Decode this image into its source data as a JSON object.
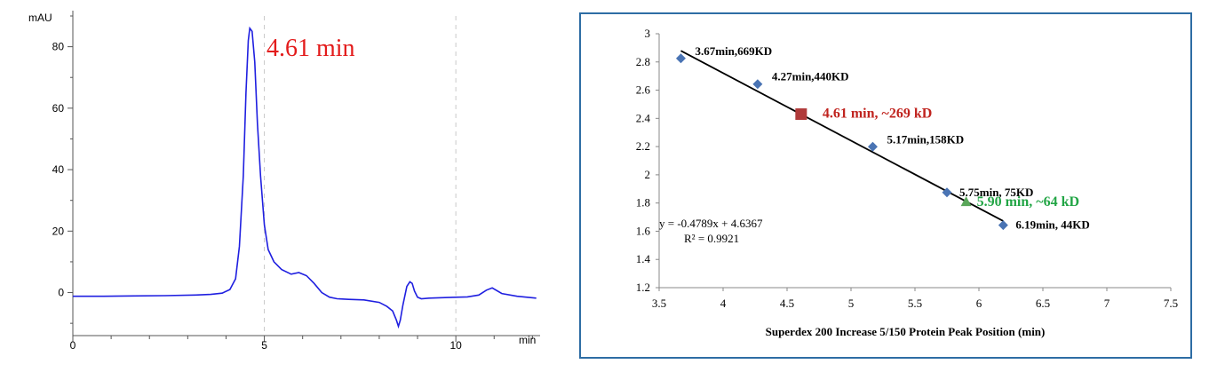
{
  "chart_data": [
    {
      "type": "line",
      "ylabel": "mAU",
      "xlabel": "min",
      "xlim": [
        0,
        12.2
      ],
      "ylim": [
        -14,
        90
      ],
      "yticks": [
        0,
        20,
        40,
        60,
        80
      ],
      "xticks": [
        0,
        5,
        10
      ],
      "annotation": "4.61 min",
      "colors": {
        "trace": "#1f1fe0",
        "annotation": "#e31b1b"
      },
      "series": [
        {
          "x": [
            0,
            0.8,
            1.6,
            2.4,
            3.2,
            3.6,
            3.9,
            4.1,
            4.25,
            4.35,
            4.45,
            4.52,
            4.58,
            4.62,
            4.68,
            4.75,
            4.82,
            4.9,
            5.0,
            5.1,
            5.25,
            5.45,
            5.7,
            5.9,
            6.1,
            6.3,
            6.5,
            6.7,
            6.9,
            7.2,
            7.6,
            8.0,
            8.2,
            8.35,
            8.45,
            8.5,
            8.55,
            8.62,
            8.72,
            8.8,
            8.86,
            8.92,
            9.0,
            9.1,
            9.3,
            9.8,
            10.3,
            10.6,
            10.8,
            10.95,
            11.2,
            11.6,
            12.1
          ],
          "y": [
            -1.2,
            -1.2,
            -1.1,
            -1.0,
            -0.8,
            -0.6,
            -0.2,
            1.0,
            4.5,
            15,
            38,
            65,
            82,
            86,
            85,
            75,
            55,
            38,
            22,
            14,
            10,
            7.5,
            6,
            6.5,
            5.5,
            3,
            0,
            -1.5,
            -2,
            -2.2,
            -2.4,
            -3.2,
            -4.5,
            -6,
            -9,
            -11,
            -9,
            -4,
            2,
            3.5,
            3,
            0.5,
            -1.5,
            -2,
            -1.8,
            -1.6,
            -1.4,
            -0.8,
            0.8,
            1.5,
            -0.3,
            -1.2,
            -1.8
          ]
        }
      ]
    },
    {
      "type": "scatter",
      "xlabel": "Superdex 200 Increase 5/150  Protein Peak Position (min)",
      "xlim": [
        3.5,
        7.5
      ],
      "ylim": [
        1.2,
        3.0
      ],
      "xticks": [
        3.5,
        4,
        4.5,
        5,
        5.5,
        6,
        6.5,
        7,
        7.5
      ],
      "yticks": [
        1.2,
        1.4,
        1.6,
        1.8,
        2,
        2.2,
        2.4,
        2.6,
        2.8,
        3
      ],
      "equation": "y = -0.4789x + 4.6367",
      "r2": "R² = 0.9921",
      "trendline": {
        "slope": -0.4789,
        "intercept": 4.6367,
        "x_range": [
          3.67,
          6.19
        ]
      },
      "colors": {
        "standards": "#4a74b4",
        "sample_high": "#b03a3a",
        "sample_low": "#5aa75a",
        "label_high": "#c0241f",
        "label_low": "#22a545",
        "frame": "#2e6da4"
      },
      "standards": [
        {
          "x": 3.67,
          "y": 2.825,
          "label": "3.67min,669KD"
        },
        {
          "x": 4.27,
          "y": 2.643,
          "label": "4.27min,440KD"
        },
        {
          "x": 5.17,
          "y": 2.199,
          "label": "5.17min,158KD"
        },
        {
          "x": 5.75,
          "y": 1.875,
          "label": "5.75min, 75KD"
        },
        {
          "x": 6.19,
          "y": 1.643,
          "label": "6.19min, 44KD"
        }
      ],
      "samples": [
        {
          "x": 4.61,
          "y": 2.43,
          "label": "4.61 min, ~269 kD",
          "marker": "square"
        },
        {
          "x": 5.9,
          "y": 1.81,
          "label": "5.90 min, ~64 kD",
          "marker": "triangle"
        }
      ]
    }
  ]
}
